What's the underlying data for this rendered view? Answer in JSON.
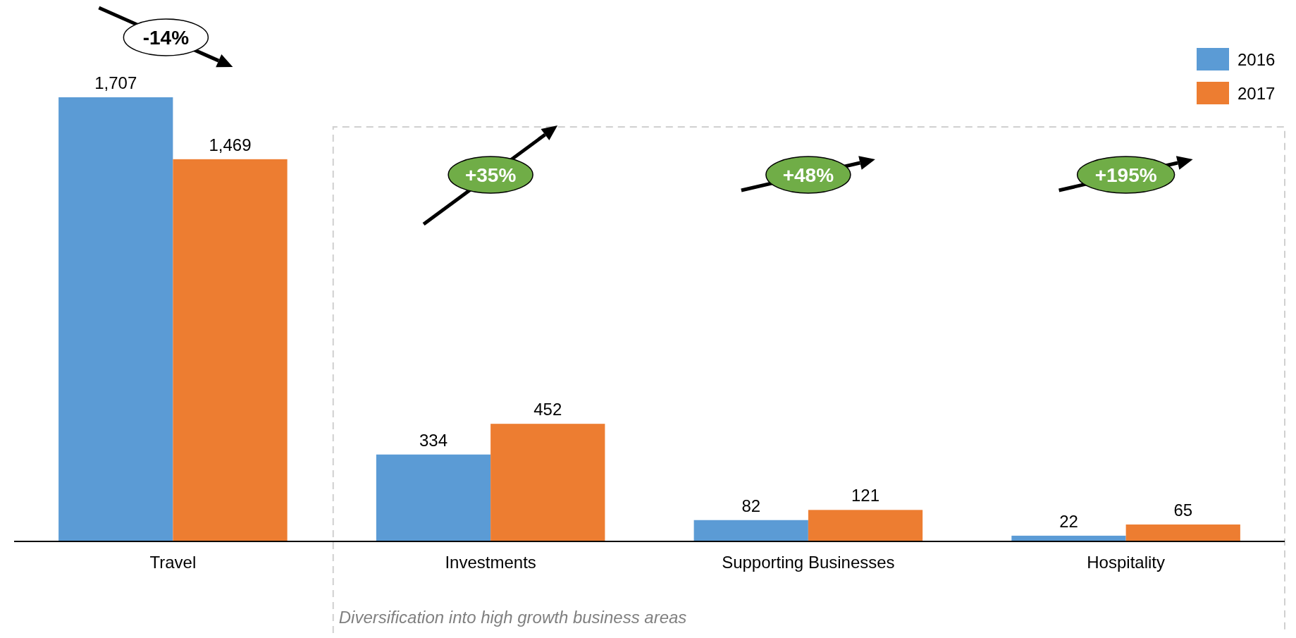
{
  "chart_data": {
    "type": "bar",
    "categories": [
      "Travel",
      "Investments",
      "Supporting Businesses",
      "Hospitality"
    ],
    "series": [
      {
        "name": "2016",
        "color": "#5b9bd5",
        "values": [
          1707,
          334,
          82,
          22
        ],
        "value_labels": [
          "1,707",
          "334",
          "82",
          "22"
        ]
      },
      {
        "name": "2017",
        "color": "#ed7d31",
        "values": [
          1469,
          452,
          121,
          65
        ],
        "value_labels": [
          "1,469",
          "452",
          "121",
          "65"
        ]
      }
    ],
    "legend": "top right",
    "annotations": [
      "-14%",
      "+35%",
      "+48%",
      "+195%",
      "Diversification into high growth business areas"
    ]
  }
}
